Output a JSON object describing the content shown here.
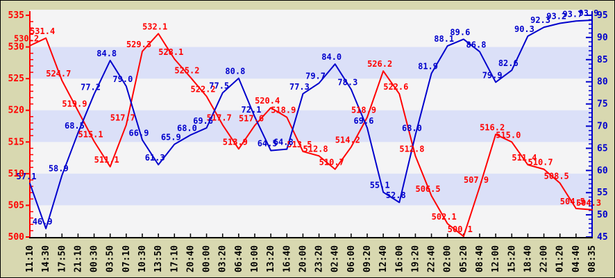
{
  "chart_data": {
    "type": "line",
    "title": "",
    "xlabel": "",
    "ylabel_left": "",
    "ylabel_right": "",
    "x_tick_labels": [
      "11:10",
      "14:30",
      "17:50",
      "21:10",
      "00:30",
      "03:50",
      "07:10",
      "10:30",
      "13:50",
      "17:10",
      "20:40",
      "00:00",
      "03:20",
      "06:40",
      "10:00",
      "13:20",
      "16:40",
      "20:00",
      "23:20",
      "02:40",
      "06:00",
      "09:20",
      "12:40",
      "16:00",
      "19:20",
      "22:40",
      "02:00",
      "05:20",
      "08:40",
      "12:00",
      "15:20",
      "18:40",
      "22:00",
      "01:20",
      "04:40",
      "08:35"
    ],
    "series": [
      {
        "name": "red-series",
        "axis": "left",
        "color": "#ff0000",
        "values": [
          530.2,
          531.4,
          524.7,
          519.9,
          515.1,
          511.1,
          517.7,
          529.3,
          532.1,
          528.1,
          525.2,
          522.2,
          517.7,
          513.9,
          517.6,
          520.4,
          518.9,
          513.5,
          512.8,
          510.7,
          514.2,
          518.9,
          526.2,
          522.6,
          512.8,
          506.5,
          502.1,
          500.1,
          507.9,
          516.2,
          515.0,
          511.4,
          510.7,
          508.5,
          504.5,
          504.3
        ]
      },
      {
        "name": "blue-series",
        "axis": "right",
        "color": "#0000cc",
        "values": [
          57.1,
          46.9,
          58.9,
          68.5,
          77.2,
          84.8,
          79.0,
          66.9,
          61.3,
          65.9,
          68.0,
          69.6,
          77.5,
          80.8,
          72.1,
          64.5,
          64.8,
          77.3,
          79.7,
          84.0,
          78.3,
          69.6,
          55.1,
          52.8,
          68.0,
          81.9,
          88.1,
          89.6,
          86.8,
          79.9,
          82.6,
          90.3,
          92.3,
          93.2,
          93.7,
          93.9
        ]
      }
    ],
    "left_axis": {
      "min": 500,
      "max": 535,
      "major_step": 5,
      "minor_step": 1,
      "tick_labels": [
        "500",
        "505",
        "510",
        "515",
        "520",
        "525",
        "530",
        "535"
      ],
      "color": "#ff0000"
    },
    "right_axis": {
      "min": 45,
      "max": 95,
      "major_step": 5,
      "minor_step": 1,
      "tick_labels": [
        "45",
        "50",
        "55",
        "60",
        "65",
        "70",
        "75",
        "80",
        "85",
        "90",
        "95"
      ],
      "color": "#0000cc"
    },
    "bands_on_left_axis": [
      [
        525,
        530
      ],
      [
        515,
        520
      ],
      [
        505,
        510
      ]
    ],
    "grid": false,
    "legend": null,
    "colors": {
      "margin_background": "#d8d8b0",
      "plot_background": "#f4f4f5",
      "band_fill": "#dbe0f8",
      "x_axis": "#000000",
      "x_tick_text": "#000000"
    },
    "data_labels_visible": true
  }
}
